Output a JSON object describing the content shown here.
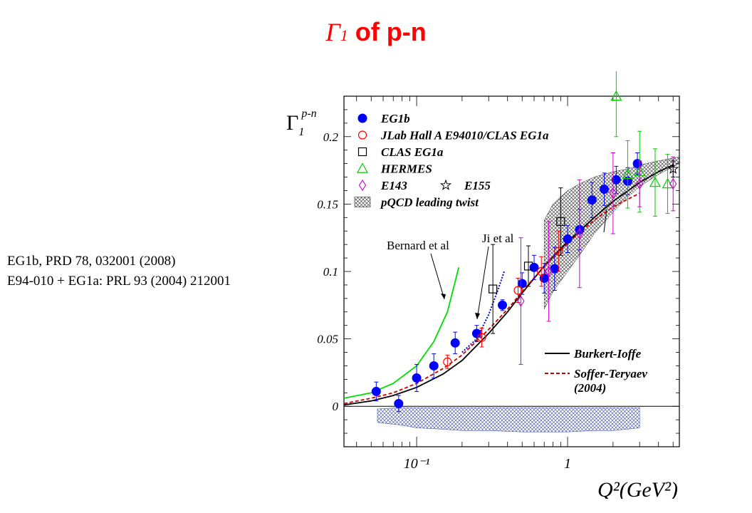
{
  "title": {
    "symbol": "Γ",
    "subscript": "1",
    "text": " of p-n"
  },
  "references": [
    "EG1b, PRD 78, 032001 (2008)",
    "E94-010 + EG1a: PRL 93 (2004) 212001"
  ],
  "chart_data": {
    "type": "scatter",
    "ylabel": {
      "main": "Γ",
      "sub": "1",
      "sup": "p-n"
    },
    "xlabel": "Q²(GeV²)",
    "xscale": "log",
    "xlim": [
      0.033,
      5.5
    ],
    "ylim": [
      -0.03,
      0.23
    ],
    "yticks": [
      {
        "value": 0,
        "label": "0"
      },
      {
        "value": 0.05,
        "label": "0.05"
      },
      {
        "value": 0.1,
        "label": "0.1"
      },
      {
        "value": 0.15,
        "label": "0.15"
      },
      {
        "value": 0.2,
        "label": "0.2"
      }
    ],
    "xticks": [
      {
        "value": 0.1,
        "label": "10⁻¹"
      },
      {
        "value": 1,
        "label": "1"
      }
    ],
    "colors": {
      "eg1b": "#0000ff",
      "hallA": "#ff0000",
      "clas": "#000000",
      "hermes": "#00cc00",
      "e143": "#cc00cc",
      "burkert": "#000000",
      "soffer": "#cc0000",
      "bernard": "#00dd00",
      "ji": "#0000cc",
      "band": "#555555"
    },
    "legend": [
      {
        "key": "eg1b",
        "marker": "filled-circle",
        "label": "EG1b"
      },
      {
        "key": "hallA",
        "marker": "open-circle",
        "label": "JLab Hall A E94010/CLAS EG1a"
      },
      {
        "key": "clas",
        "marker": "open-square",
        "label": "CLAS EG1a"
      },
      {
        "key": "hermes",
        "marker": "open-triangle",
        "label": "HERMES"
      },
      {
        "key": "e143",
        "marker": "open-diamond",
        "label": "E143",
        "extra_marker": "star",
        "extra_label": "E155"
      },
      {
        "key": "band",
        "marker": "hatched-box",
        "label": "pQCD leading twist"
      }
    ],
    "curve_legend": [
      {
        "key": "burkert",
        "style": "solid",
        "label": "Burkert-Ioffe"
      },
      {
        "key": "soffer",
        "style": "dashed",
        "label": "Soffer-Teryaev",
        "label2": "(2004)"
      }
    ],
    "annotations": [
      {
        "text": "Bernard et al",
        "key": "bernard"
      },
      {
        "text": "Ji et al",
        "key": "ji"
      }
    ],
    "series": [
      {
        "name": "EG1b",
        "marker": "filled-circle",
        "points": [
          {
            "x": 0.054,
            "y": 0.011,
            "err": 0.007
          },
          {
            "x": 0.076,
            "y": 0.002,
            "err": 0.006
          },
          {
            "x": 0.1,
            "y": 0.021,
            "err": 0.01
          },
          {
            "x": 0.13,
            "y": 0.03,
            "err": 0.009
          },
          {
            "x": 0.18,
            "y": 0.047,
            "err": 0.008
          },
          {
            "x": 0.25,
            "y": 0.054,
            "err": 0.006
          },
          {
            "x": 0.37,
            "y": 0.075,
            "err": 0.004
          },
          {
            "x": 0.5,
            "y": 0.091,
            "err": 0.008
          },
          {
            "x": 0.6,
            "y": 0.103,
            "err": 0.009
          },
          {
            "x": 0.7,
            "y": 0.095,
            "err": 0.011
          },
          {
            "x": 0.82,
            "y": 0.102,
            "err": 0.016
          },
          {
            "x": 1.0,
            "y": 0.124,
            "err": 0.01
          },
          {
            "x": 1.2,
            "y": 0.131,
            "err": 0.015
          },
          {
            "x": 1.45,
            "y": 0.153,
            "err": 0.013
          },
          {
            "x": 1.75,
            "y": 0.161,
            "err": 0.012
          },
          {
            "x": 2.1,
            "y": 0.168,
            "err": 0.01
          },
          {
            "x": 2.5,
            "y": 0.167,
            "err": 0.01
          },
          {
            "x": 2.9,
            "y": 0.18,
            "err": 0.008
          }
        ]
      },
      {
        "name": "JLab Hall A E94010/CLAS EG1a",
        "marker": "open-circle",
        "points": [
          {
            "x": 0.16,
            "y": 0.033,
            "err": 0.005
          },
          {
            "x": 0.27,
            "y": 0.051,
            "err": 0.007
          },
          {
            "x": 0.47,
            "y": 0.086,
            "err": 0.009
          },
          {
            "x": 0.67,
            "y": 0.1,
            "err": 0.011
          },
          {
            "x": 0.87,
            "y": 0.115,
            "err": 0.015
          }
        ]
      },
      {
        "name": "CLAS EG1a",
        "marker": "open-square",
        "points": [
          {
            "x": 0.32,
            "y": 0.087,
            "err": 0.033
          },
          {
            "x": 0.55,
            "y": 0.104,
            "err": 0.015
          },
          {
            "x": 0.9,
            "y": 0.137,
            "err": 0.025
          }
        ]
      },
      {
        "name": "HERMES",
        "marker": "open-triangle",
        "points": [
          {
            "x": 2.1,
            "y": 0.23,
            "err": 0.03
          },
          {
            "x": 2.5,
            "y": 0.172,
            "err": 0.025
          },
          {
            "x": 3.0,
            "y": 0.174,
            "err": 0.03
          },
          {
            "x": 3.8,
            "y": 0.166,
            "err": 0.025
          },
          {
            "x": 4.6,
            "y": 0.165,
            "err": 0.022
          }
        ]
      },
      {
        "name": "E143",
        "marker": "open-diamond",
        "points": [
          {
            "x": 0.49,
            "y": 0.078,
            "err": 0.047
          },
          {
            "x": 0.75,
            "y": 0.1,
            "err": 0.037
          },
          {
            "x": 1.2,
            "y": 0.128,
            "err": 0.04
          },
          {
            "x": 2.0,
            "y": 0.158,
            "err": 0.03
          },
          {
            "x": 3.0,
            "y": 0.165,
            "err": 0.017
          },
          {
            "x": 5.0,
            "y": 0.165,
            "err": 0.02
          }
        ]
      },
      {
        "name": "E155",
        "marker": "star",
        "points": [
          {
            "x": 5.0,
            "y": 0.176,
            "err": 0.006
          }
        ]
      }
    ],
    "curves": [
      {
        "name": "Burkert-Ioffe",
        "style": "solid",
        "points": [
          [
            0.033,
            0.001
          ],
          [
            0.05,
            0.004
          ],
          [
            0.07,
            0.008
          ],
          [
            0.1,
            0.014
          ],
          [
            0.15,
            0.024
          ],
          [
            0.2,
            0.034
          ],
          [
            0.3,
            0.054
          ],
          [
            0.4,
            0.07
          ],
          [
            0.5,
            0.084
          ],
          [
            0.7,
            0.104
          ],
          [
            1.0,
            0.122
          ],
          [
            1.5,
            0.14
          ],
          [
            2.0,
            0.152
          ],
          [
            3.0,
            0.166
          ],
          [
            4.0,
            0.174
          ],
          [
            5.0,
            0.179
          ]
        ]
      },
      {
        "name": "Soffer-Teryaev (2004)",
        "style": "dashed",
        "points": [
          [
            0.033,
            0.002
          ],
          [
            0.05,
            0.006
          ],
          [
            0.07,
            0.01
          ],
          [
            0.1,
            0.017
          ],
          [
            0.15,
            0.028
          ],
          [
            0.2,
            0.038
          ],
          [
            0.3,
            0.057
          ],
          [
            0.4,
            0.072
          ],
          [
            0.5,
            0.085
          ],
          [
            0.7,
            0.104
          ],
          [
            1.0,
            0.121
          ],
          [
            1.5,
            0.138
          ],
          [
            2.0,
            0.148
          ],
          [
            3.0,
            0.158
          ]
        ]
      },
      {
        "name": "Bernard et al",
        "style": "solid",
        "points": [
          [
            0.033,
            0.006
          ],
          [
            0.05,
            0.01
          ],
          [
            0.07,
            0.017
          ],
          [
            0.1,
            0.03
          ],
          [
            0.13,
            0.048
          ],
          [
            0.16,
            0.07
          ],
          [
            0.19,
            0.103
          ]
        ]
      },
      {
        "name": "Ji et al",
        "style": "dotted",
        "points": [
          [
            0.2,
            0.04
          ],
          [
            0.25,
            0.05
          ],
          [
            0.3,
            0.068
          ],
          [
            0.35,
            0.088
          ],
          [
            0.38,
            0.1
          ]
        ]
      }
    ],
    "bands": [
      {
        "name": "pQCD leading twist",
        "x": [
          0.7,
          0.8,
          1.0,
          1.2,
          1.5,
          2.0,
          2.5,
          3.0,
          4.0,
          5.5
        ],
        "upper": [
          0.138,
          0.15,
          0.16,
          0.165,
          0.17,
          0.174,
          0.176,
          0.179,
          0.182,
          0.185
        ],
        "lower": [
          0.072,
          0.085,
          0.1,
          0.112,
          0.128,
          0.144,
          0.155,
          0.163,
          0.172,
          0.18
        ]
      },
      {
        "name": "systematic error",
        "x": [
          0.055,
          0.08,
          0.1,
          0.15,
          0.2,
          0.3,
          0.5,
          0.8,
          1.0,
          1.5,
          2.0,
          3.0
        ],
        "upper": [
          -0.002,
          -0.001,
          -0.001,
          -0.001,
          -0.001,
          -0.001,
          -0.001,
          -0.001,
          -0.001,
          -0.001,
          -0.001,
          -0.001
        ],
        "lower": [
          -0.012,
          -0.014,
          -0.016,
          -0.017,
          -0.018,
          -0.018,
          -0.019,
          -0.019,
          -0.019,
          -0.018,
          -0.018,
          -0.016
        ]
      }
    ]
  }
}
